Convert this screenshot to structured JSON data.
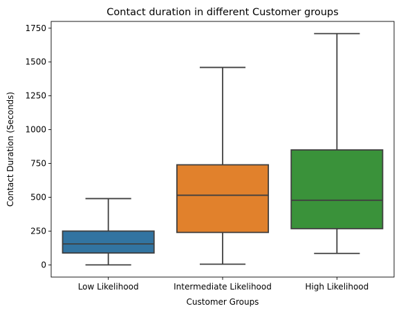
{
  "chart_data": {
    "type": "box",
    "title": "Contact duration in different Customer groups",
    "xlabel": "Customer Groups",
    "ylabel": "Contact Duration (Seconds)",
    "ylim": [
      -90,
      1800
    ],
    "yticks": [
      0,
      250,
      500,
      750,
      1000,
      1250,
      1500,
      1750
    ],
    "grid": false,
    "categories": [
      "Low Likelihood",
      "Intermediate Likelihood",
      "High Likelihood"
    ],
    "boxes": [
      {
        "category": "Low Likelihood",
        "whisker_low": 0,
        "q1": 88,
        "median": 155,
        "q3": 250,
        "whisker_high": 490,
        "color": "#3274a1"
      },
      {
        "category": "Intermediate Likelihood",
        "whisker_low": 5,
        "q1": 240,
        "median": 515,
        "q3": 740,
        "whisker_high": 1460,
        "color": "#e1812c"
      },
      {
        "category": "High Likelihood",
        "whisker_low": 85,
        "q1": 268,
        "median": 478,
        "q3": 850,
        "whisker_high": 1710,
        "color": "#3a923a"
      }
    ]
  }
}
